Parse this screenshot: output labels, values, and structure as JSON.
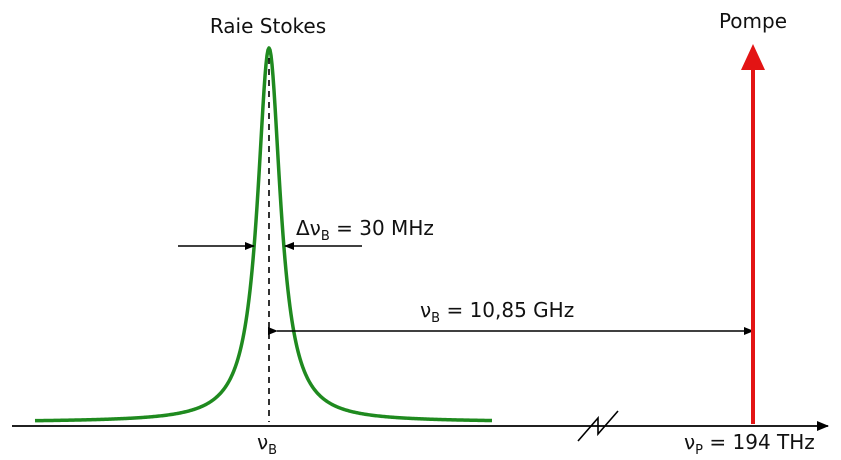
{
  "labels": {
    "stokes_title": "Raie Stokes",
    "pump_title": "Pompe",
    "linewidth": {
      "prefix": "Δν",
      "sub": "B",
      "suffix": " = 30 MHz"
    },
    "shift": {
      "prefix": "ν",
      "sub": "B",
      "suffix": " = 10,85 GHz"
    },
    "axis_stokes": {
      "prefix": "ν",
      "sub": "B"
    },
    "axis_pump": {
      "prefix": "ν",
      "sub": "P",
      "suffix": " = 194 THz"
    }
  },
  "colors": {
    "stokes_curve": "#1f8a1f",
    "pump_arrow": "#e31414",
    "axis": "#000000",
    "text": "#111111"
  }
}
